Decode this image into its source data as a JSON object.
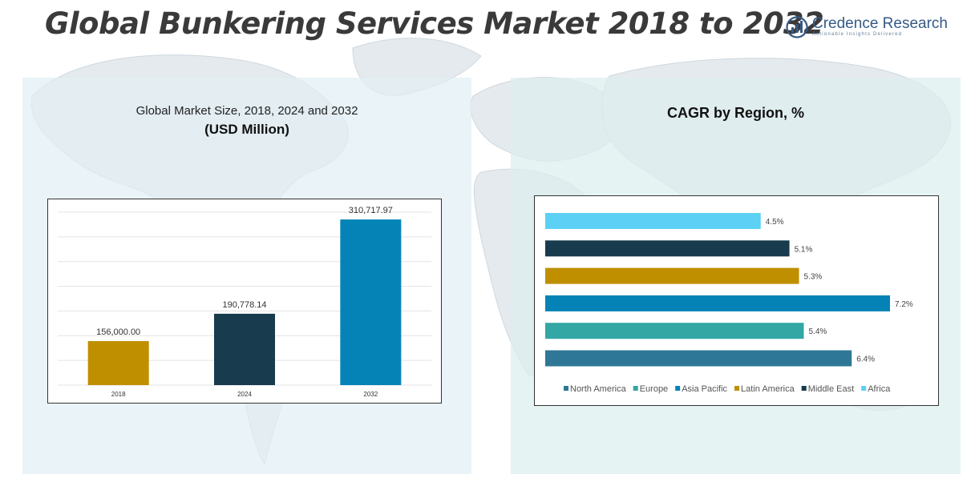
{
  "header": {
    "title": "Global Bunkering Services Market 2018 to 2032",
    "logo_name": "Credence Research",
    "logo_tagline": "Actionable Insights Delivered"
  },
  "colors": {
    "title": "#3a3a3a",
    "panel_left_bg": "#e2eef4",
    "panel_right_bg": "#dceeee"
  },
  "left_panel": {
    "title": "Global Market Size, 2018, 2024 and 2032",
    "subtitle": "(USD Million)"
  },
  "right_panel": {
    "title": "CAGR by Region, %"
  },
  "chart_data": [
    {
      "type": "bar",
      "title": "Global Market Size, 2018, 2024 and 2032",
      "subtitle": "(USD Million)",
      "categories": [
        "2018",
        "2024",
        "2032"
      ],
      "values": [
        156000.0,
        190778.14,
        310717.97
      ],
      "data_labels": [
        "156,000.00",
        "190,778.14",
        "310,717.97"
      ],
      "colors": [
        "#bf8f00",
        "#183b4e",
        "#0583b6"
      ],
      "ylim": [
        100000,
        320000
      ],
      "grid": true,
      "legend": "none"
    },
    {
      "type": "bar",
      "orientation": "horizontal",
      "title": "CAGR by Region, %",
      "series": [
        {
          "name": "North America",
          "value": 6.4,
          "label": "6.4%",
          "color": "#2e7796"
        },
        {
          "name": "Europe",
          "value": 5.4,
          "label": "5.4%",
          "color": "#33a7a4"
        },
        {
          "name": "Asia Pacific",
          "value": 7.2,
          "label": "7.2%",
          "color": "#0583b6"
        },
        {
          "name": "Latin America",
          "value": 5.3,
          "label": "5.3%",
          "color": "#bf8f00"
        },
        {
          "name": "Middle East",
          "value": 5.1,
          "label": "5.1%",
          "color": "#183b4e"
        },
        {
          "name": "Africa",
          "value": 4.5,
          "label": "4.5%",
          "color": "#5cd0f5"
        }
      ],
      "bar_order_top_to_bottom": [
        "Africa",
        "Middle East",
        "Latin America",
        "Asia Pacific",
        "Europe",
        "North America"
      ],
      "xlim": [
        0,
        7.5
      ],
      "grid": false,
      "legend": "bottom"
    }
  ]
}
